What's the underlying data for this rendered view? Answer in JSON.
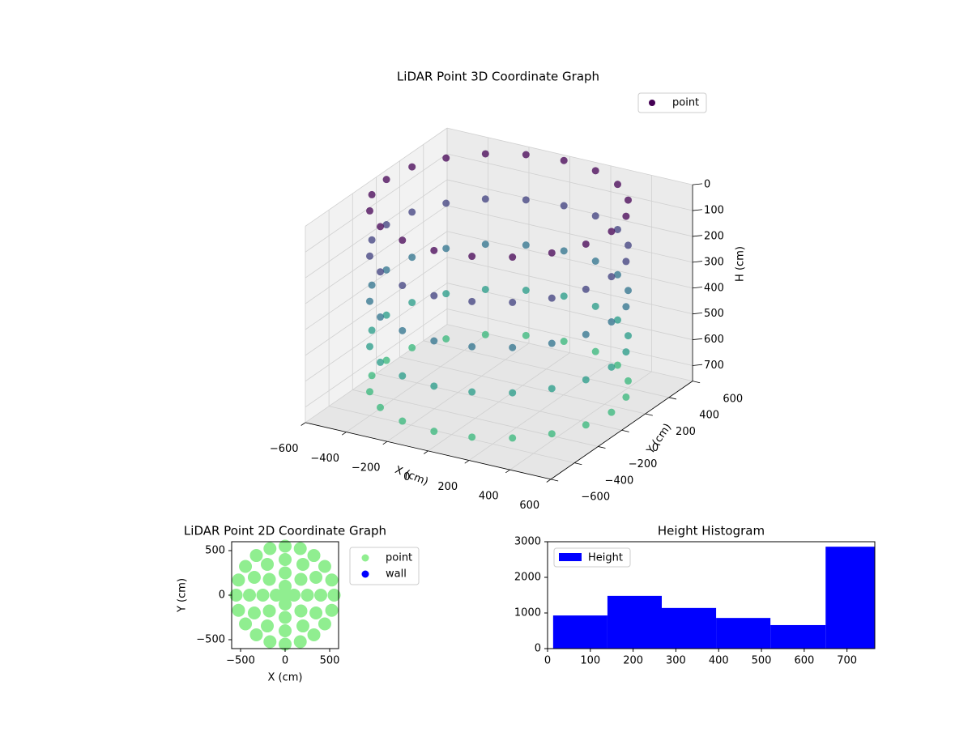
{
  "chart_data": [
    {
      "type": "scatter3d",
      "title": "LiDAR Point 3D Coordinate Graph",
      "xlabel": "X (cm)",
      "ylabel": "Y (cm)",
      "zlabel": "H (cm)",
      "xlim": [
        -600,
        600
      ],
      "ylim": [
        -600,
        600
      ],
      "zlim": [
        0,
        760
      ],
      "zinvert": true,
      "xticks": [
        {
          "value": -600,
          "label": "−600"
        },
        {
          "value": -400,
          "label": "−400"
        },
        {
          "value": -200,
          "label": "−200"
        },
        0,
        200,
        400,
        600
      ],
      "yticks": [
        {
          "value": -600,
          "label": "−600"
        },
        {
          "value": -400,
          "label": "−400"
        },
        {
          "value": -200,
          "label": "−200"
        },
        0,
        200,
        400,
        600
      ],
      "zticks": [
        0,
        100,
        200,
        300,
        400,
        500,
        600,
        700
      ],
      "colormap": [
        "#440154",
        "#3b528b",
        "#21918c",
        "#35b779"
      ],
      "legend": "upper right",
      "series": [
        {
          "name": "point",
          "color": "#440154",
          "x": [
            550,
            523,
            445,
            323,
            170,
            0,
            -170,
            -323,
            -445,
            -523,
            -550,
            -523,
            -445,
            -323,
            -170,
            0,
            170,
            323,
            445,
            523,
            550,
            523,
            445,
            323,
            170,
            0,
            -170,
            -323,
            -445,
            -523,
            -550,
            -523,
            -445,
            -323,
            -170,
            0,
            170,
            323,
            445,
            523,
            550,
            523,
            445,
            323,
            170,
            0,
            -170,
            -323,
            -445,
            -523,
            -550,
            -523,
            -445,
            -323,
            -170,
            0,
            170,
            323,
            445,
            523,
            550,
            523,
            445,
            323,
            170,
            0,
            -170,
            -323,
            -445,
            -523,
            -550,
            -523,
            -445,
            -323,
            -170,
            0,
            170,
            323,
            445,
            523,
            550,
            523,
            445,
            323,
            170,
            0,
            -170,
            -323,
            -445,
            -523,
            -550,
            -523,
            -445,
            -323,
            -170,
            0,
            170,
            323,
            445,
            523
          ],
          "y": [
            0,
            170,
            323,
            445,
            523,
            550,
            523,
            445,
            323,
            170,
            0,
            -170,
            -323,
            -445,
            -523,
            -550,
            -523,
            -445,
            -323,
            -170,
            0,
            170,
            323,
            445,
            523,
            550,
            523,
            445,
            323,
            170,
            0,
            -170,
            -323,
            -445,
            -523,
            -550,
            -523,
            -445,
            -323,
            -170,
            0,
            170,
            323,
            445,
            523,
            550,
            523,
            445,
            323,
            170,
            0,
            -170,
            -323,
            -445,
            -523,
            -550,
            -523,
            -445,
            -323,
            -170,
            0,
            170,
            323,
            445,
            523,
            550,
            523,
            445,
            323,
            170,
            0,
            -170,
            -323,
            -445,
            -523,
            -550,
            -523,
            -445,
            -323,
            -170,
            0,
            170,
            323,
            445,
            523,
            550,
            523,
            445,
            323,
            170,
            0,
            -170,
            -323,
            -445,
            -523,
            -550,
            -523,
            -445,
            -323,
            -170
          ],
          "z": [
            0,
            0,
            0,
            0,
            0,
            0,
            0,
            0,
            0,
            0,
            0,
            0,
            0,
            0,
            0,
            0,
            0,
            0,
            0,
            0,
            175,
            175,
            175,
            175,
            175,
            175,
            175,
            175,
            175,
            175,
            175,
            175,
            175,
            175,
            175,
            175,
            175,
            175,
            175,
            175,
            350,
            350,
            350,
            350,
            350,
            350,
            350,
            350,
            350,
            350,
            350,
            350,
            350,
            350,
            350,
            350,
            350,
            350,
            350,
            350,
            525,
            525,
            525,
            525,
            525,
            525,
            525,
            525,
            525,
            525,
            525,
            525,
            525,
            525,
            525,
            525,
            525,
            525,
            525,
            525,
            700,
            700,
            700,
            700,
            700,
            700,
            700,
            700,
            700,
            700,
            700,
            700,
            700,
            700,
            700,
            700,
            700,
            700,
            700,
            700
          ]
        }
      ]
    },
    {
      "type": "scatter",
      "title": "LiDAR Point 2D Coordinate Graph",
      "xlabel": "X (cm)",
      "ylabel": "Y (cm)",
      "xlim": [
        -600,
        600
      ],
      "ylim": [
        -600,
        600
      ],
      "xticks": [
        {
          "value": -500,
          "label": "−500"
        },
        0,
        500
      ],
      "yticks": [
        {
          "value": -500,
          "label": "−500"
        },
        0,
        500
      ],
      "legend": "outside right",
      "series": [
        {
          "name": "point",
          "color": "#90ee90",
          "x": [
            550,
            523,
            445,
            323,
            170,
            0,
            -170,
            -323,
            -445,
            -523,
            -550,
            -523,
            -445,
            -323,
            -170,
            0,
            170,
            323,
            445,
            523,
            400,
            346,
            200,
            0,
            -200,
            -346,
            -400,
            -346,
            -200,
            0,
            200,
            346,
            250,
            177,
            0,
            -177,
            -250,
            -177,
            0,
            177,
            100,
            0,
            -100,
            0,
            0
          ],
          "y": [
            0,
            170,
            323,
            445,
            523,
            550,
            523,
            445,
            323,
            170,
            0,
            -170,
            -323,
            -445,
            -523,
            -550,
            -523,
            -445,
            -323,
            -170,
            0,
            200,
            346,
            400,
            346,
            200,
            0,
            -200,
            -346,
            -400,
            -346,
            -200,
            0,
            177,
            250,
            177,
            0,
            -177,
            -250,
            -177,
            0,
            100,
            0,
            -100,
            0
          ]
        },
        {
          "name": "wall",
          "color": "#0000ff",
          "x": [],
          "y": []
        }
      ]
    },
    {
      "type": "histogram",
      "title": "Height Histogram",
      "bins": [
        13,
        140,
        267,
        394,
        521,
        650,
        765
      ],
      "values": [
        930,
        1480,
        1140,
        860,
        660,
        2860
      ],
      "xlim": [
        0,
        765
      ],
      "ylim": [
        0,
        3000
      ],
      "xticks": [
        0,
        100,
        200,
        300,
        400,
        500,
        600,
        700
      ],
      "yticks": [
        0,
        1000,
        2000,
        3000
      ],
      "legend": "upper left",
      "series": [
        {
          "name": "Height",
          "color": "#0000ff"
        }
      ]
    }
  ]
}
